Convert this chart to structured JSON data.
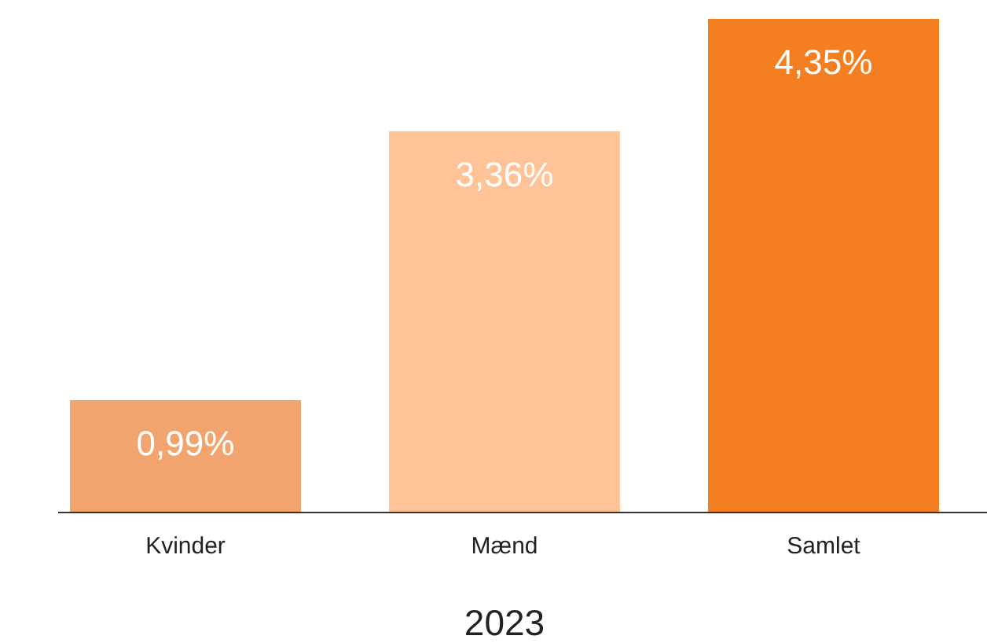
{
  "chart_data": {
    "type": "bar",
    "xlabel": "2023",
    "categories": [
      "Kvinder",
      "Mænd",
      "Samlet"
    ],
    "values": [
      0.99,
      3.36,
      4.35
    ],
    "colors": [
      "#f2a46e",
      "#ffc397",
      "#f47f20"
    ],
    "value_labels": [
      "0,99%",
      "3,36%",
      "4,35%"
    ]
  }
}
